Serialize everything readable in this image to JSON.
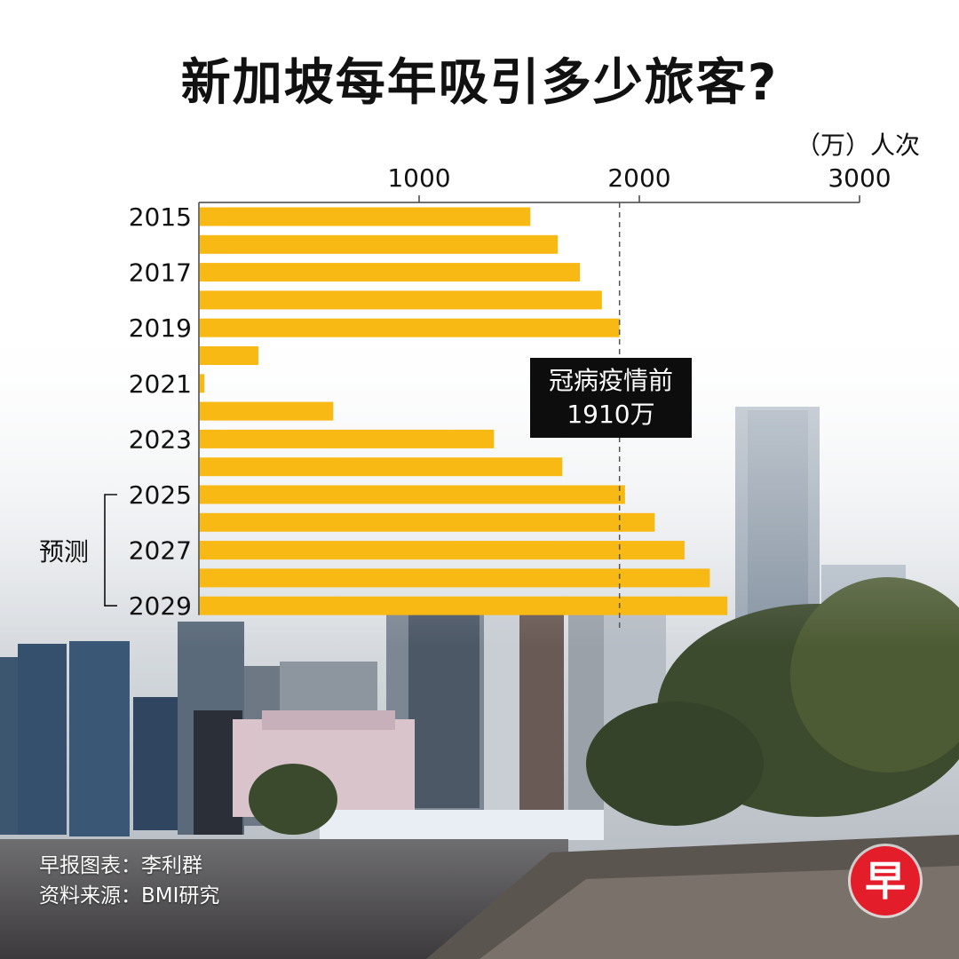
{
  "title": "新加坡每年吸引多少旅客?",
  "unit_label": "（万）人次",
  "forecast_label": "预测",
  "callout": {
    "line1": "冠病疫情前",
    "line2": "1910万"
  },
  "credits": {
    "line1": "早报图表：李利群",
    "line2": "资料来源：BMI研究"
  },
  "logo_text": "早",
  "colors": {
    "bar": "#F9B914",
    "axis": "#444444",
    "callout_bg": "#0D0D0D",
    "logo": "#E31D2A"
  },
  "chart_data": {
    "type": "bar",
    "orientation": "horizontal",
    "title": "新加坡每年吸引多少旅客?",
    "xlabel": "（万）人次",
    "xlim": [
      0,
      3000
    ],
    "xticks": [
      1000,
      2000,
      3000
    ],
    "categories": [
      "2015",
      "2016",
      "2017",
      "2018",
      "2019",
      "2020",
      "2021",
      "2022",
      "2023",
      "2024",
      "2025",
      "2026",
      "2027",
      "2028",
      "2029"
    ],
    "category_labels_shown": [
      "2015",
      "",
      "2017",
      "",
      "2019",
      "",
      "2021",
      "",
      "2023",
      "",
      "2025",
      "",
      "2027",
      "",
      "2029"
    ],
    "values": [
      1505,
      1630,
      1730,
      1830,
      1910,
      270,
      25,
      610,
      1340,
      1650,
      1935,
      2070,
      2205,
      2320,
      2400
    ],
    "reference_line": {
      "value": 1910,
      "style": "dashed",
      "label": "冠病疫情前 1910万"
    },
    "forecast_range": [
      "2025",
      "2029"
    ]
  }
}
